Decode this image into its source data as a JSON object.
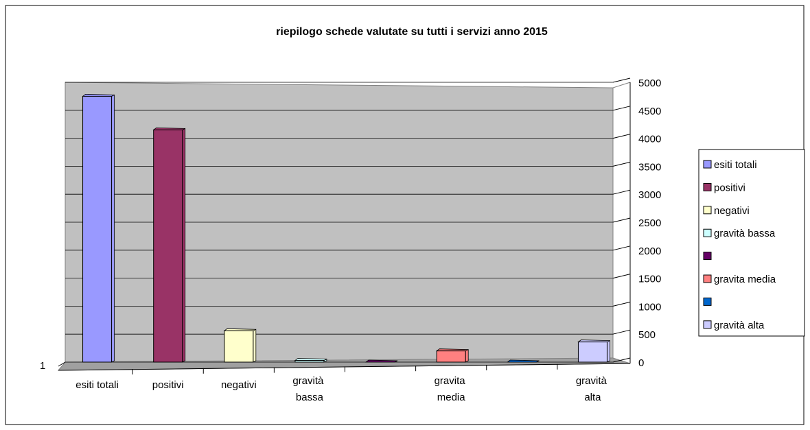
{
  "chart_data": {
    "type": "bar3d",
    "title": "riepilogo schede valutate su tutti i servizi anno 2015",
    "categories": [
      "esiti totali",
      "positivi",
      "negativi",
      "gravità bassa",
      null,
      "gravita media",
      null,
      "gravità alta"
    ],
    "values": [
      4750,
      4150,
      560,
      30,
      0,
      200,
      0,
      360
    ],
    "colors": [
      "#9999ff",
      "#993366",
      "#ffffcc",
      "#ccffff",
      "#660066",
      "#ff8080",
      "#0066cc",
      "#ccccff"
    ],
    "legend": [
      "esiti totali",
      "positivi",
      "negativi",
      "gravità bassa",
      null,
      "gravita media",
      null,
      "gravità alta"
    ],
    "depth_label": "1",
    "ylim": [
      0,
      5000
    ],
    "yticks": [
      0,
      500,
      1000,
      1500,
      2000,
      2500,
      3000,
      3500,
      4000,
      4500,
      5000
    ],
    "grid": true,
    "legend_position": "right"
  }
}
